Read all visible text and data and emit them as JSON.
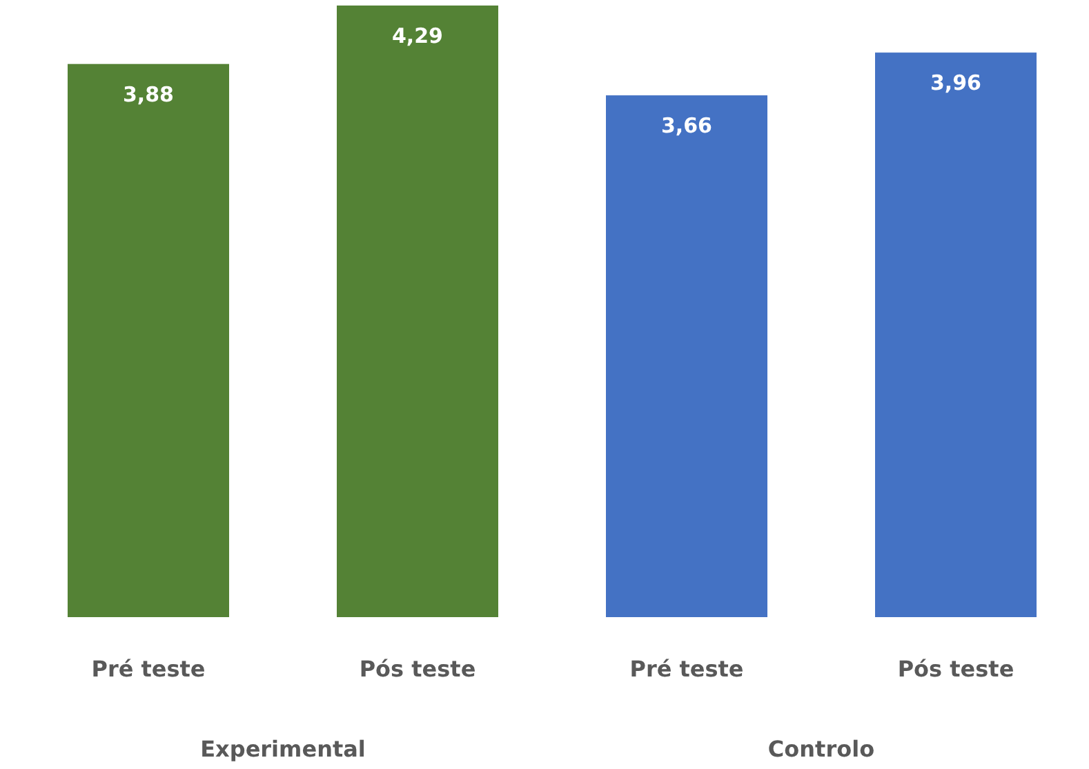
{
  "chart_data": {
    "type": "bar",
    "categories": [
      "Pré teste",
      "Pós teste",
      "Pré teste",
      "Pós teste"
    ],
    "values": [
      3.88,
      4.29,
      3.66,
      3.96
    ],
    "colors": [
      "#548235",
      "#548235",
      "#4472c4",
      "#4472c4"
    ],
    "value_labels": [
      "3,88",
      "4,29",
      "3,66",
      "3,96"
    ],
    "annotations": [
      "Experimental",
      "Controlo"
    ]
  }
}
